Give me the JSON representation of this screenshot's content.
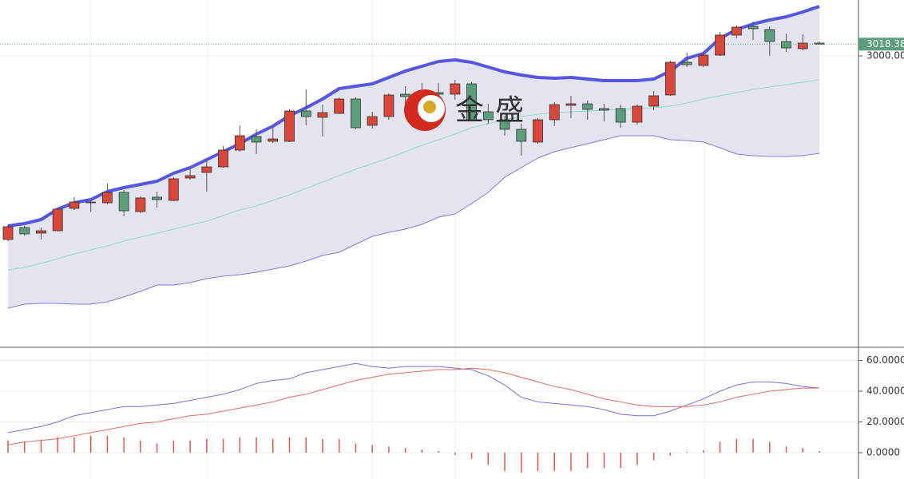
{
  "watermark": "金盛",
  "chart_data": [
    {
      "type": "candlestick",
      "open": [
        2712.5,
        2731.25,
        2722.5,
        2726.25,
        2761.25,
        2771.25,
        2770,
        2786.25,
        2756.25,
        2778.75,
        2773.75,
        2808.75,
        2817.5,
        2826.25,
        2852.5,
        2873.75,
        2866.25,
        2866.25,
        2913.75,
        2903.75,
        2910,
        2932.5,
        2891.25,
        2905,
        2940,
        2941.25,
        2942.5,
        2940,
        2956.25,
        2912.5,
        2900,
        2885,
        2865,
        2900,
        2922.5,
        2925,
        2917.5,
        2917.5,
        2896.25,
        2921.25,
        2938.75,
        2990,
        2985,
        3001.25,
        3032.5,
        3046.25,
        3041.25,
        3022.5,
        3011.25,
        3020
      ],
      "high": [
        2735,
        2733.75,
        2731.25,
        2762.5,
        2778.75,
        2775,
        2800,
        2790,
        2780,
        2787.5,
        2810,
        2825,
        2837.5,
        2858.75,
        2891.25,
        2885,
        2890,
        2916.25,
        2947.5,
        2923.75,
        2935,
        2935,
        2912.5,
        2941.25,
        2952.5,
        2957.5,
        2957.5,
        2962.5,
        2958.75,
        2925,
        2906.25,
        2893.75,
        2902.5,
        2927.5,
        2937.5,
        2930,
        2925,
        2923.75,
        2923.75,
        2945,
        2992.5,
        3005,
        3005,
        3037.5,
        3047.5,
        3053.75,
        3046.25,
        3035,
        3033.75,
        3022.5
      ],
      "low": [
        2710,
        2718.75,
        2712.5,
        2725,
        2758.75,
        2756.25,
        2767.5,
        2748.75,
        2753.75,
        2762.5,
        2772.5,
        2806.25,
        2787.5,
        2825,
        2850,
        2846.25,
        2863.75,
        2865,
        2891.25,
        2873.75,
        2908.75,
        2885,
        2886.25,
        2900,
        2912.5,
        2912.5,
        2931.25,
        2931.25,
        2897.5,
        2893.75,
        2875,
        2843.75,
        2862.5,
        2890,
        2902.5,
        2900,
        2897.5,
        2887.5,
        2892.5,
        2915,
        2937.5,
        2982.5,
        2982.5,
        3000,
        3027.5,
        3025,
        3000,
        3006.25,
        3008.75,
        3017.5
      ],
      "close": [
        2732.5,
        2721.25,
        2726.25,
        2760,
        2771.25,
        2770,
        2786.25,
        2757.5,
        2777.5,
        2775,
        2807.5,
        2812.5,
        2826.25,
        2852.5,
        2875,
        2865,
        2870,
        2913.75,
        2905,
        2911.25,
        2932.5,
        2887.5,
        2905,
        2938.75,
        2936.25,
        2937.5,
        2940,
        2956.25,
        2900,
        2900,
        2885,
        2866.25,
        2900,
        2923.75,
        2925,
        2916.25,
        2915,
        2896.25,
        2921.25,
        2937.5,
        2990,
        2986.25,
        3001.25,
        3032.5,
        3045,
        3042.5,
        3022.5,
        3012.5,
        3020,
        3018.38
      ],
      "up_color": "#d9473a",
      "down_color": "#5c9e7c",
      "series": [
        {
          "color": "#5656e6",
          "values": [
            2733.75,
            2737.5,
            2743.75,
            2760,
            2770,
            2775,
            2787.5,
            2793.75,
            2798.75,
            2803.75,
            2816.25,
            2825,
            2837.5,
            2850,
            2862.5,
            2877.5,
            2890,
            2906.25,
            2918.75,
            2932.5,
            2948.75,
            2952.5,
            2956.25,
            2966.25,
            2976.25,
            2983.75,
            2991.25,
            2993.75,
            2990,
            2982.5,
            2975,
            2970,
            2966.25,
            2965,
            2966.25,
            2963.75,
            2961.25,
            2961.25,
            2961.25,
            2963.75,
            2976.25,
            2996.25,
            3003.75,
            3027.5,
            3041.25,
            3050,
            3056.25,
            3061.25,
            3068.75,
            3077.5
          ]
        },
        {
          "color": "#8fd9c9",
          "values": [
            2665,
            2668.75,
            2675,
            2682.5,
            2690,
            2696.25,
            2702.5,
            2710,
            2716.25,
            2722.5,
            2728.75,
            2735,
            2741.25,
            2750,
            2758.75,
            2765,
            2773.75,
            2782.5,
            2792.5,
            2802.5,
            2812.5,
            2822.5,
            2831.25,
            2840,
            2850,
            2860,
            2868.75,
            2877.5,
            2887.5,
            2893.75,
            2900,
            2905,
            2908.75,
            2911.25,
            2912.5,
            2913.75,
            2915,
            2916.25,
            2917.5,
            2918.75,
            2921.25,
            2926.25,
            2932.5,
            2937.5,
            2942.5,
            2947.5,
            2951.25,
            2955,
            2958.75,
            2962.5
          ]
        },
        {
          "color": "#7b7be6",
          "values": [
            2605,
            2611.25,
            2612.5,
            2612.5,
            2611.25,
            2611.25,
            2615,
            2622.5,
            2631.25,
            2641.25,
            2641.25,
            2645,
            2651.25,
            2655,
            2657.5,
            2661.25,
            2666.25,
            2671.25,
            2678.75,
            2687.5,
            2692.5,
            2705,
            2717.5,
            2723.75,
            2728.75,
            2736.25,
            2747.5,
            2752.5,
            2768.75,
            2786.25,
            2810,
            2825,
            2840,
            2850,
            2856.25,
            2862.5,
            2868.75,
            2875,
            2875,
            2875,
            2868.75,
            2867.5,
            2865,
            2856.25,
            2846.25,
            2843.75,
            2842.5,
            2842.5,
            2843.75,
            2847.5
          ]
        }
      ],
      "band_fill": "#e4e4f1",
      "ylim": [
        2543.75,
        3087.5
      ],
      "yticks": [
        {
          "value": 3000,
          "label": "3000.00"
        }
      ],
      "grid": true
    },
    {
      "type": "macd",
      "series": [
        {
          "color": "#7070e0",
          "values": [
            13,
            15,
            17,
            20,
            24,
            26,
            28,
            30,
            30,
            31,
            32,
            34,
            36,
            38,
            41,
            45,
            47,
            48,
            52,
            54,
            56,
            58,
            56,
            55,
            56,
            56,
            56,
            55,
            54,
            50,
            44,
            36,
            33,
            32,
            31,
            30,
            28,
            25,
            24,
            24,
            27,
            31,
            35,
            40,
            44,
            46,
            46,
            45,
            43,
            42
          ]
        },
        {
          "color": "#e26a5e",
          "values": [
            5,
            7,
            8,
            9,
            11,
            13,
            15,
            17,
            19,
            20,
            22,
            24,
            25,
            27,
            29,
            31,
            33,
            36,
            38,
            41,
            44,
            47,
            49,
            51,
            52,
            53,
            54,
            54,
            55,
            54,
            52,
            49,
            46,
            43,
            41,
            38,
            35,
            33,
            31,
            30,
            30,
            30,
            31,
            33,
            36,
            38,
            40,
            41,
            42,
            42
          ]
        }
      ],
      "histogram": {
        "color": "#e0574a",
        "values": [
          8,
          7,
          8,
          10,
          10,
          11,
          11,
          10,
          8,
          6,
          8,
          8,
          9,
          9,
          10,
          10,
          9,
          10,
          10,
          9,
          9,
          6,
          5,
          4,
          3,
          2,
          1,
          -1.5,
          -4,
          -8,
          -12,
          -13,
          -12,
          -12,
          -12,
          -10,
          -10,
          -10,
          -8,
          -5,
          -2,
          0.5,
          1.5,
          7,
          9,
          9,
          7,
          4,
          3,
          1
        ]
      },
      "ylim": [
        -16.1,
        67.5
      ],
      "yticks": [
        {
          "value": 60,
          "label": "60.0000"
        },
        {
          "value": 40,
          "label": "40.0000"
        },
        {
          "value": 20,
          "label": "20.0000"
        },
        {
          "value": 0,
          "label": "0.0000"
        }
      ],
      "grid": true
    }
  ]
}
